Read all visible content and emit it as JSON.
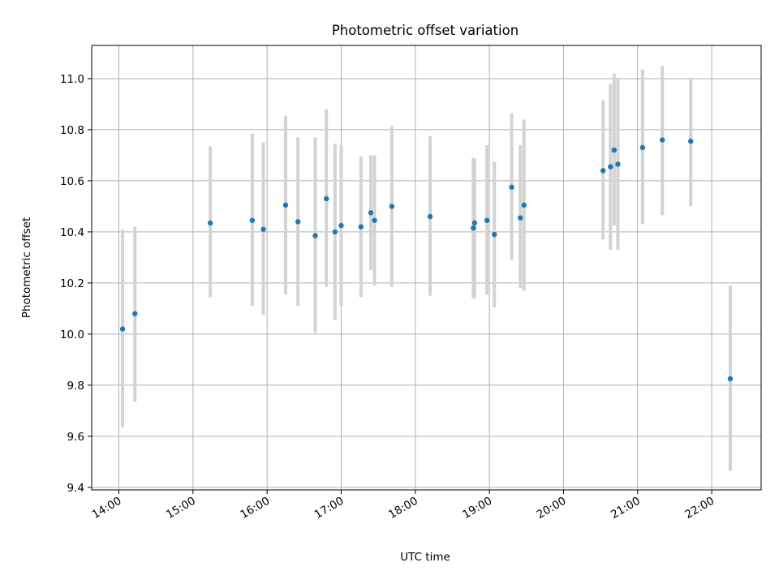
{
  "chart_data": {
    "type": "scatter",
    "title": "Photometric offset variation",
    "xlabel": "UTC time",
    "ylabel": "Photometric offset",
    "xlim": [
      "13:38",
      "22:40"
    ],
    "ylim": [
      9.39,
      11.13
    ],
    "grid": true,
    "point_color": "#1f77b4",
    "errorbar_color": "#d3d3d3",
    "x_ticks": [
      "14:00",
      "15:00",
      "16:00",
      "17:00",
      "18:00",
      "19:00",
      "20:00",
      "21:00",
      "22:00"
    ],
    "y_ticks": [
      "9.4",
      "9.6",
      "9.8",
      "10.0",
      "10.2",
      "10.4",
      "10.6",
      "10.8",
      "11.0"
    ],
    "points": [
      {
        "x": "14:03",
        "y": 10.02,
        "low": 9.635,
        "high": 10.41
      },
      {
        "x": "14:13",
        "y": 10.08,
        "low": 9.735,
        "high": 10.42
      },
      {
        "x": "15:14",
        "y": 10.435,
        "low": 10.145,
        "high": 10.735
      },
      {
        "x": "15:48",
        "y": 10.445,
        "low": 10.11,
        "high": 10.785
      },
      {
        "x": "15:57",
        "y": 10.41,
        "low": 10.075,
        "high": 10.75
      },
      {
        "x": "16:15",
        "y": 10.505,
        "low": 10.155,
        "high": 10.855
      },
      {
        "x": "16:25",
        "y": 10.44,
        "low": 10.11,
        "high": 10.77
      },
      {
        "x": "16:39",
        "y": 10.385,
        "low": 10.005,
        "high": 10.77
      },
      {
        "x": "16:48",
        "y": 10.53,
        "low": 10.185,
        "high": 10.88
      },
      {
        "x": "16:55",
        "y": 10.4,
        "low": 10.055,
        "high": 10.745
      },
      {
        "x": "17:00",
        "y": 10.425,
        "low": 10.11,
        "high": 10.74
      },
      {
        "x": "17:16",
        "y": 10.42,
        "low": 10.145,
        "high": 10.695
      },
      {
        "x": "17:24",
        "y": 10.475,
        "low": 10.25,
        "high": 10.7
      },
      {
        "x": "17:27",
        "y": 10.445,
        "low": 10.19,
        "high": 10.7
      },
      {
        "x": "17:41",
        "y": 10.5,
        "low": 10.185,
        "high": 10.815
      },
      {
        "x": "18:12",
        "y": 10.46,
        "low": 10.15,
        "high": 10.775
      },
      {
        "x": "18:47",
        "y": 10.415,
        "low": 10.14,
        "high": 10.69
      },
      {
        "x": "18:48",
        "y": 10.435,
        "low": 10.14,
        "high": 10.685
      },
      {
        "x": "18:58",
        "y": 10.445,
        "low": 10.155,
        "high": 10.74
      },
      {
        "x": "19:04",
        "y": 10.39,
        "low": 10.105,
        "high": 10.675
      },
      {
        "x": "19:18",
        "y": 10.575,
        "low": 10.29,
        "high": 10.865
      },
      {
        "x": "19:25",
        "y": 10.455,
        "low": 10.18,
        "high": 10.74
      },
      {
        "x": "19:28",
        "y": 10.505,
        "low": 10.17,
        "high": 10.84
      },
      {
        "x": "20:32",
        "y": 10.64,
        "low": 10.37,
        "high": 10.915
      },
      {
        "x": "20:38",
        "y": 10.655,
        "low": 10.33,
        "high": 10.98
      },
      {
        "x": "20:41",
        "y": 10.72,
        "low": 10.425,
        "high": 11.02
      },
      {
        "x": "20:44",
        "y": 10.665,
        "low": 10.33,
        "high": 11.0
      },
      {
        "x": "21:04",
        "y": 10.73,
        "low": 10.43,
        "high": 11.035
      },
      {
        "x": "21:20",
        "y": 10.76,
        "low": 10.465,
        "high": 11.05
      },
      {
        "x": "21:43",
        "y": 10.755,
        "low": 10.5,
        "high": 11.0
      },
      {
        "x": "22:15",
        "y": 9.825,
        "low": 9.465,
        "high": 10.19
      }
    ]
  }
}
